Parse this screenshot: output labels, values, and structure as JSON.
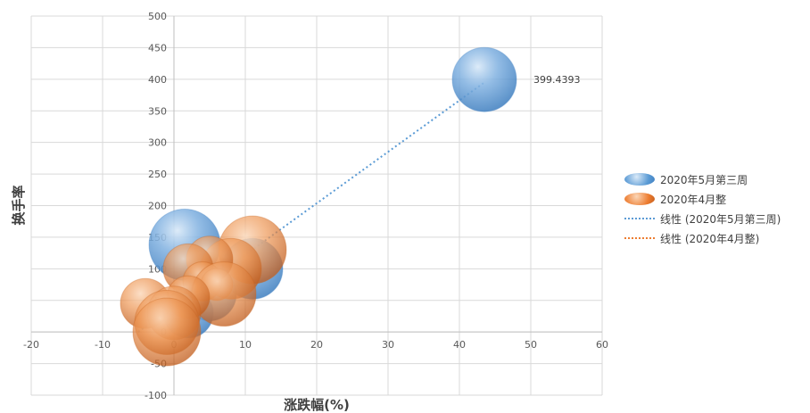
{
  "chart_data": {
    "type": "scatter",
    "subtype": "bubble",
    "title": "",
    "xlabel": "涨跌幅(%)",
    "ylabel": "换手率",
    "xlim": [
      -20,
      60
    ],
    "ylim": [
      -100,
      500
    ],
    "xticks": [
      -20,
      -10,
      0,
      10,
      20,
      30,
      40,
      50,
      60
    ],
    "yticks": [
      -100,
      -50,
      0,
      50,
      100,
      150,
      200,
      250,
      300,
      350,
      400,
      450,
      500
    ],
    "grid": true,
    "legend_position": "right",
    "series": [
      {
        "name": "2020年5月第三周",
        "color": "#5b9bd5",
        "points": [
          {
            "x": 43.5,
            "y": 399.4393,
            "size": 36
          },
          {
            "x": 1.5,
            "y": 138,
            "size": 40
          },
          {
            "x": 11,
            "y": 100,
            "size": 34
          },
          {
            "x": 5,
            "y": 60,
            "size": 30
          },
          {
            "x": 2,
            "y": 30,
            "size": 28
          }
        ]
      },
      {
        "name": "2020年4月整",
        "color": "#ed7d31",
        "points": [
          {
            "x": 11,
            "y": 130,
            "size": 38
          },
          {
            "x": 8,
            "y": 100,
            "size": 34
          },
          {
            "x": 5,
            "y": 115,
            "size": 26
          },
          {
            "x": 2,
            "y": 100,
            "size": 28
          },
          {
            "x": 4,
            "y": 80,
            "size": 22
          },
          {
            "x": 6,
            "y": 75,
            "size": 18
          },
          {
            "x": 7,
            "y": 60,
            "size": 36
          },
          {
            "x": 2,
            "y": 55,
            "size": 24
          },
          {
            "x": -4,
            "y": 45,
            "size": 28
          },
          {
            "x": 0,
            "y": 30,
            "size": 30
          },
          {
            "x": -1,
            "y": 15,
            "size": 36
          },
          {
            "x": -1,
            "y": 0,
            "size": 38
          }
        ]
      }
    ],
    "trendlines": [
      {
        "name": "线性 (2020年5月第三周)",
        "color": "#5b9bd5",
        "style": "dotted",
        "from": {
          "x": -5,
          "y": 0
        },
        "to": {
          "x": 43.5,
          "y": 395
        }
      },
      {
        "name": "线性 (2020年4月整)",
        "color": "#ed7d31",
        "style": "dotted"
      }
    ],
    "annotations": [
      {
        "text": "399.4393",
        "x": 43.5,
        "y": 399.4393
      }
    ]
  }
}
